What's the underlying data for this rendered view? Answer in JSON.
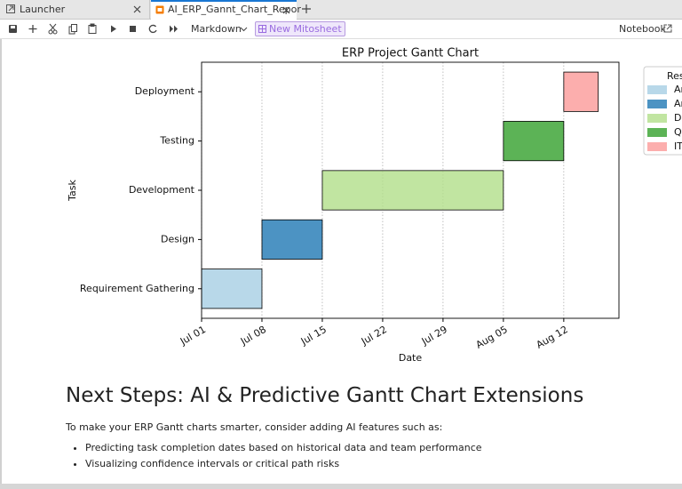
{
  "tabs": [
    "Launcher",
    "AI_ERP_Gannt_Chart_Repor"
  ],
  "toolbar": {
    "cell_type": "Markdown",
    "mitosheet": "New Mitosheet",
    "kernel": "Notebook"
  },
  "chart_data": {
    "type": "gantt",
    "title": "ERP Project Gantt Chart",
    "x_label": "Date",
    "y_label": "Task",
    "categories": [
      "Requirement Gathering",
      "Design",
      "Development",
      "Testing",
      "Deployment"
    ],
    "start": [
      0,
      7,
      14,
      35,
      42
    ],
    "end": [
      7,
      14,
      35,
      42,
      46
    ],
    "colors": [
      "#a6cee3",
      "#1f78b4",
      "#b2df8a",
      "#33a02c",
      "#fb9a99"
    ],
    "legend_title": "Res",
    "legend_labels": [
      "Ar",
      "Ar",
      "D",
      "Q",
      "IT"
    ],
    "xlim": [
      0,
      48.4
    ],
    "xticks": [
      {
        "value": 0,
        "label": "Jul 01"
      },
      {
        "value": 7,
        "label": "Jul 08"
      },
      {
        "value": 14,
        "label": "Jul 15"
      },
      {
        "value": 21,
        "label": "Jul 22"
      },
      {
        "value": 28,
        "label": "Jul 29"
      },
      {
        "value": 35,
        "label": "Aug 05"
      },
      {
        "value": 42,
        "label": "Aug 12"
      }
    ],
    "ylim": [
      -0.6,
      4.6
    ],
    "grid": true
  },
  "markdown": {
    "heading": "Next Steps: AI & Predictive Gantt Chart Extensions",
    "paragraph": "To make your ERP Gantt charts smarter, consider adding AI features such as:",
    "bullets": [
      "Predicting task completion dates based on historical data and team performance",
      "Visualizing confidence intervals or critical path risks"
    ]
  }
}
